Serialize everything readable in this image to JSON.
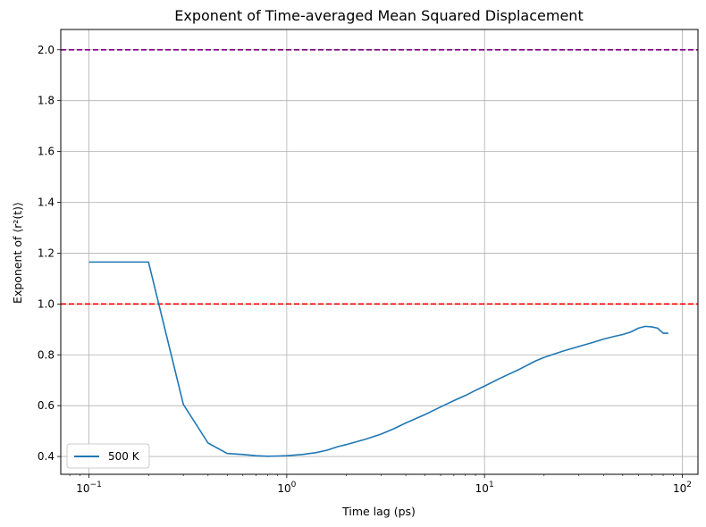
{
  "chart_data": {
    "type": "line",
    "title": "Exponent of Time-averaged Mean Squared Displacement",
    "xlabel": "Time lag (ps)",
    "ylabel": "Exponent of ⟨r²(t)⟩",
    "xscale": "log",
    "xlim": [
      0.072,
      120
    ],
    "ylim": [
      0.33,
      2.08
    ],
    "x_ticks": [
      {
        "value": 0.1,
        "base": "10",
        "exp": "−1"
      },
      {
        "value": 1,
        "base": "10",
        "exp": "0"
      },
      {
        "value": 10,
        "base": "10",
        "exp": "1"
      },
      {
        "value": 100,
        "base": "10",
        "exp": "2"
      }
    ],
    "y_ticks": [
      0.4,
      0.6,
      0.8,
      1.0,
      1.2,
      1.4,
      1.6,
      1.8,
      2.0
    ],
    "y_tick_labels": [
      "0.4",
      "0.6",
      "0.8",
      "1.0",
      "1.2",
      "1.4",
      "1.6",
      "1.8",
      "2.0"
    ],
    "grid": true,
    "legend_position": "lower-left",
    "reference_lines": [
      {
        "y": 2.0,
        "color": "#800080",
        "style": "dashed"
      },
      {
        "y": 1.0,
        "color": "#ff0000",
        "style": "dashed"
      }
    ],
    "series": [
      {
        "name": "500 K",
        "color": "#1f77b4",
        "points": [
          [
            0.1,
            1.165
          ],
          [
            0.2,
            1.165
          ],
          [
            0.3,
            0.605
          ],
          [
            0.4,
            0.453
          ],
          [
            0.5,
            0.412
          ],
          [
            0.6,
            0.408
          ],
          [
            0.7,
            0.403
          ],
          [
            0.8,
            0.401
          ],
          [
            0.9,
            0.402
          ],
          [
            1.0,
            0.403
          ],
          [
            1.2,
            0.408
          ],
          [
            1.4,
            0.415
          ],
          [
            1.6,
            0.425
          ],
          [
            1.8,
            0.438
          ],
          [
            2.0,
            0.447
          ],
          [
            2.5,
            0.468
          ],
          [
            3.0,
            0.488
          ],
          [
            3.5,
            0.51
          ],
          [
            4.0,
            0.532
          ],
          [
            5.0,
            0.565
          ],
          [
            6.0,
            0.595
          ],
          [
            7.0,
            0.62
          ],
          [
            8.0,
            0.64
          ],
          [
            9.0,
            0.66
          ],
          [
            10.0,
            0.677
          ],
          [
            12.0,
            0.708
          ],
          [
            15.0,
            0.743
          ],
          [
            18.0,
            0.775
          ],
          [
            20.0,
            0.79
          ],
          [
            25.0,
            0.815
          ],
          [
            30.0,
            0.833
          ],
          [
            35.0,
            0.848
          ],
          [
            40.0,
            0.862
          ],
          [
            45.0,
            0.872
          ],
          [
            50.0,
            0.88
          ],
          [
            55.0,
            0.89
          ],
          [
            60.0,
            0.905
          ],
          [
            65.0,
            0.912
          ],
          [
            70.0,
            0.91
          ],
          [
            75.0,
            0.905
          ],
          [
            80.0,
            0.885
          ],
          [
            85.0,
            0.885
          ]
        ]
      }
    ]
  }
}
